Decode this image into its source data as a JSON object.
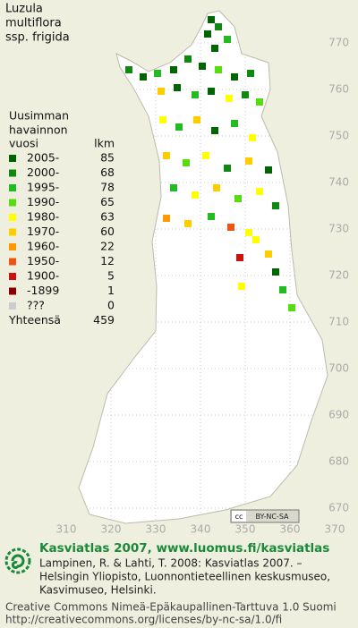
{
  "title": [
    "Luzula",
    "multiflora",
    "ssp. frigida"
  ],
  "legend": {
    "heading": [
      "Uusimman",
      "havainnon"
    ],
    "col_year": "vuosi",
    "col_count": "lkm",
    "rows": [
      {
        "label": "2005-",
        "count": 85,
        "color": "#006400"
      },
      {
        "label": "2000-",
        "count": 68,
        "color": "#118811"
      },
      {
        "label": "1995-",
        "count": 78,
        "color": "#22bb22"
      },
      {
        "label": "1990-",
        "count": 65,
        "color": "#55dd11"
      },
      {
        "label": "1980-",
        "count": 63,
        "color": "#ffff00"
      },
      {
        "label": "1970-",
        "count": 60,
        "color": "#ffcc00"
      },
      {
        "label": "1960-",
        "count": 22,
        "color": "#ff9900"
      },
      {
        "label": "1950-",
        "count": 12,
        "color": "#ee5511"
      },
      {
        "label": "1900-",
        "count": 5,
        "color": "#cc1111"
      },
      {
        "label": "-1899",
        "count": 1,
        "color": "#880000"
      },
      {
        "label": "???",
        "count": 0,
        "color": "#cccccc"
      }
    ],
    "total_label": "Yhteensä",
    "total": 459
  },
  "axes": {
    "northing": [
      770,
      760,
      750,
      740,
      730,
      720,
      710,
      700,
      690,
      680,
      670
    ],
    "easting": [
      310,
      320,
      330,
      340,
      350,
      360,
      370
    ]
  },
  "badge": "BY-NC-SA",
  "credits": {
    "heading": "Kasviatlas 2007, www.luomus.fi/kasviatlas",
    "citation": [
      "Lampinen, R. & Lahti, T. 2008: Kasviatlas 2007. –",
      "Helsingin Yliopisto, Luonnontieteellinen keskusmuseo,",
      "Kasvimuseo, Helsinki."
    ],
    "license": [
      "Creative Commons Nimeä-Epäkaupallinen-Tarttuva 1.0 Suomi",
      "http://creativecommons.org/licenses/by-nc-sa/1.0/fi"
    ]
  }
}
